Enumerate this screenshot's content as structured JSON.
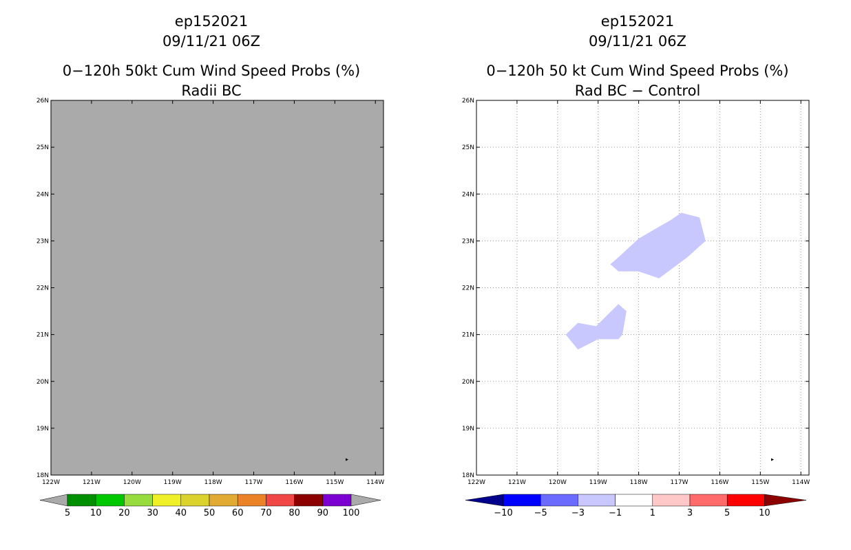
{
  "chart_data": [
    {
      "type": "heatmap",
      "panel": "left",
      "titles": [
        "ep152021",
        "09/11/21 06Z",
        "0−120h 50kt Cum Wind Speed Probs (%)",
        "Radii BC"
      ],
      "x_ticks": [
        "122W",
        "121W",
        "120W",
        "119W",
        "118W",
        "117W",
        "116W",
        "115W",
        "114W"
      ],
      "x_values": [
        -122,
        -121,
        -120,
        -119,
        -118,
        -117,
        -116,
        -115,
        -114
      ],
      "y_ticks": [
        "18N",
        "19N",
        "20N",
        "21N",
        "22N",
        "23N",
        "24N",
        "25N",
        "26N"
      ],
      "y_values": [
        18,
        19,
        20,
        21,
        22,
        23,
        24,
        25,
        26
      ],
      "xlim": [
        -122,
        -113.8
      ],
      "ylim": [
        18,
        26
      ],
      "grid": false,
      "fill_color": "#aaaaaa",
      "storm_marker": {
        "lon": -114.7,
        "lat": 18.33
      },
      "colorbar": {
        "labels": [
          "5",
          "10",
          "20",
          "30",
          "40",
          "50",
          "60",
          "70",
          "80",
          "90",
          "100"
        ],
        "colors": [
          "#008f00",
          "#00c800",
          "#96dc3c",
          "#f0f028",
          "#dcd22d",
          "#e1aa32",
          "#eb8228",
          "#f04646",
          "#8c0000",
          "#7d00d2"
        ],
        "under_color": "#aaaaaa",
        "over_color": "#aaaaaa"
      }
    },
    {
      "type": "heatmap",
      "panel": "right",
      "titles": [
        "ep152021",
        "09/11/21 06Z",
        "0−120h 50 kt Cum Wind Speed Probs (%)",
        "Rad BC − Control"
      ],
      "x_ticks": [
        "122W",
        "121W",
        "120W",
        "119W",
        "118W",
        "117W",
        "116W",
        "115W",
        "114W"
      ],
      "x_values": [
        -122,
        -121,
        -120,
        -119,
        -118,
        -117,
        -116,
        -115,
        -114
      ],
      "y_ticks": [
        "18N",
        "19N",
        "20N",
        "21N",
        "22N",
        "23N",
        "24N",
        "25N",
        "26N"
      ],
      "y_values": [
        18,
        19,
        20,
        21,
        22,
        23,
        24,
        25,
        26
      ],
      "xlim": [
        -122,
        -113.8
      ],
      "ylim": [
        18,
        26
      ],
      "grid": true,
      "storm_marker": {
        "lon": -114.7,
        "lat": 18.33
      },
      "regions": [
        {
          "value_range": "-3 to -1",
          "color": "#c8c8ff",
          "polygon": [
            [
              -118.7,
              22.5
            ],
            [
              -118.5,
              22.65
            ],
            [
              -118.0,
              23.05
            ],
            [
              -117.5,
              23.3
            ],
            [
              -117.2,
              23.45
            ],
            [
              -116.95,
              23.6
            ],
            [
              -116.5,
              23.5
            ],
            [
              -116.35,
              23.0
            ],
            [
              -116.8,
              22.65
            ],
            [
              -117.5,
              22.2
            ],
            [
              -118.0,
              22.35
            ],
            [
              -118.5,
              22.35
            ]
          ]
        },
        {
          "value_range": "-3 to -1",
          "color": "#c8c8ff",
          "polygon": [
            [
              -119.8,
              21.0
            ],
            [
              -119.5,
              21.25
            ],
            [
              -119.05,
              21.18
            ],
            [
              -118.5,
              21.65
            ],
            [
              -118.3,
              21.5
            ],
            [
              -118.4,
              21.0
            ],
            [
              -118.5,
              20.9
            ],
            [
              -119.0,
              20.9
            ],
            [
              -119.5,
              20.68
            ]
          ]
        }
      ],
      "colorbar": {
        "labels": [
          "−10",
          "−5",
          "−3",
          "−1",
          "1",
          "3",
          "5",
          "10"
        ],
        "colors": [
          "#0000ff",
          "#6b6bff",
          "#c8c8ff",
          "#ffffff",
          "#ffc8c8",
          "#ff6b6b",
          "#ff0000"
        ],
        "under_color": "#00008c",
        "over_color": "#8c0000"
      }
    }
  ]
}
